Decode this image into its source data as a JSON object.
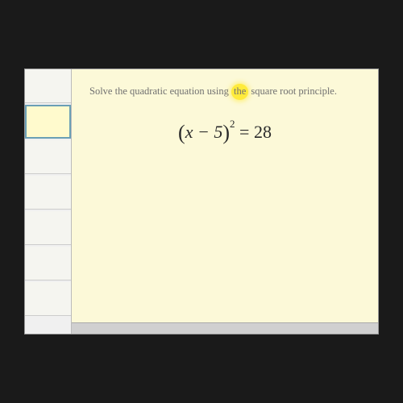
{
  "instruction": {
    "pre": "Solve the quadratic equation using ",
    "hl": "the",
    "post": " square root principle."
  },
  "equation": {
    "lparen": "(",
    "inner": "x − 5",
    "rparen": ")",
    "exp": "2",
    "eq": " = ",
    "rhs": "28"
  },
  "colors": {
    "slide_bg": "#fcf9d8",
    "text": "#707070",
    "highlight": "#ffeb3b",
    "eq_text": "#2a2a2a"
  }
}
